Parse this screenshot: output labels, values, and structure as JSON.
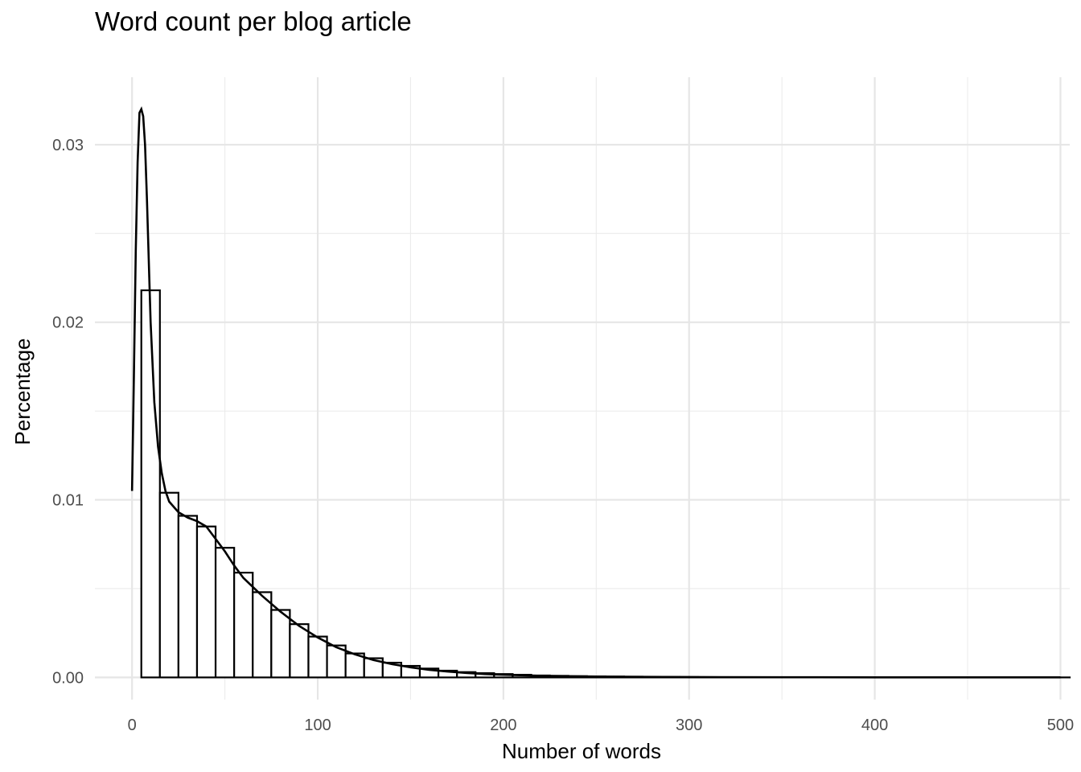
{
  "chart_data": {
    "type": "bar",
    "title": "Word count per blog article",
    "xlabel": "Number of words",
    "ylabel": "Percentage",
    "xlim": [
      -20,
      505
    ],
    "ylim": [
      -0.00125,
      0.0338
    ],
    "xticks": [
      0,
      100,
      200,
      300,
      400,
      500
    ],
    "xtick_labels": [
      "0",
      "100",
      "200",
      "300",
      "400",
      "500"
    ],
    "yticks": [
      0.0,
      0.01,
      0.02,
      0.03
    ],
    "ytick_labels": [
      "0.00",
      "0.01",
      "0.02",
      "0.03"
    ],
    "grid": true,
    "bin_width": 10,
    "bins": {
      "x_start": [
        -5,
        5,
        15,
        25,
        35,
        45,
        55,
        65,
        75,
        85,
        95,
        105,
        115,
        125,
        135,
        145,
        155,
        165,
        175,
        185,
        195,
        205,
        215,
        225,
        235,
        245,
        255,
        265,
        275,
        285,
        295,
        305,
        315,
        325,
        335,
        345,
        355,
        365,
        375,
        385,
        395,
        405,
        415,
        425,
        435,
        445,
        455,
        465,
        475,
        485,
        495
      ],
      "density": [
        0.0,
        0.0218,
        0.0104,
        0.0091,
        0.0085,
        0.0073,
        0.0059,
        0.0048,
        0.0038,
        0.003,
        0.0023,
        0.0018,
        0.00135,
        0.00108,
        0.00083,
        0.00065,
        0.0005,
        0.00038,
        0.0003,
        0.00024,
        0.00019,
        0.00015,
        0.00011,
        9e-05,
        7e-05,
        6e-05,
        5e-05,
        4e-05,
        3e-05,
        2.5e-05,
        2e-05,
        1.5e-05,
        1.2e-05,
        1e-05,
        8e-06,
        7e-06,
        6e-06,
        5e-06,
        4e-06,
        4e-06,
        3e-06,
        3e-06,
        2e-06,
        2e-06,
        2e-06,
        1e-06,
        1e-06,
        1e-06,
        1e-06,
        1e-06,
        1e-06
      ]
    },
    "density_curve": {
      "x": [
        0,
        1,
        2,
        3,
        4,
        5,
        6,
        7,
        8,
        9,
        10,
        12,
        14,
        16,
        18,
        20,
        25,
        30,
        35,
        40,
        45,
        50,
        55,
        60,
        70,
        80,
        90,
        100,
        110,
        120,
        130,
        140,
        150,
        160,
        170,
        180,
        190,
        200,
        220,
        240,
        260,
        300,
        350,
        400,
        450,
        500
      ],
      "y": [
        0.0105,
        0.017,
        0.024,
        0.029,
        0.0318,
        0.032,
        0.0316,
        0.03,
        0.027,
        0.0235,
        0.02,
        0.0155,
        0.013,
        0.0115,
        0.0105,
        0.0099,
        0.0093,
        0.009,
        0.0088,
        0.0085,
        0.0078,
        0.0071,
        0.0063,
        0.0056,
        0.0046,
        0.0037,
        0.0029,
        0.00225,
        0.0017,
        0.0013,
        0.00098,
        0.00075,
        0.00057,
        0.00043,
        0.00033,
        0.00025,
        0.00019,
        0.00015,
        9e-05,
        6e-05,
        4e-05,
        2e-05,
        1e-05,
        5e-06,
        3e-06,
        2e-06
      ]
    }
  }
}
